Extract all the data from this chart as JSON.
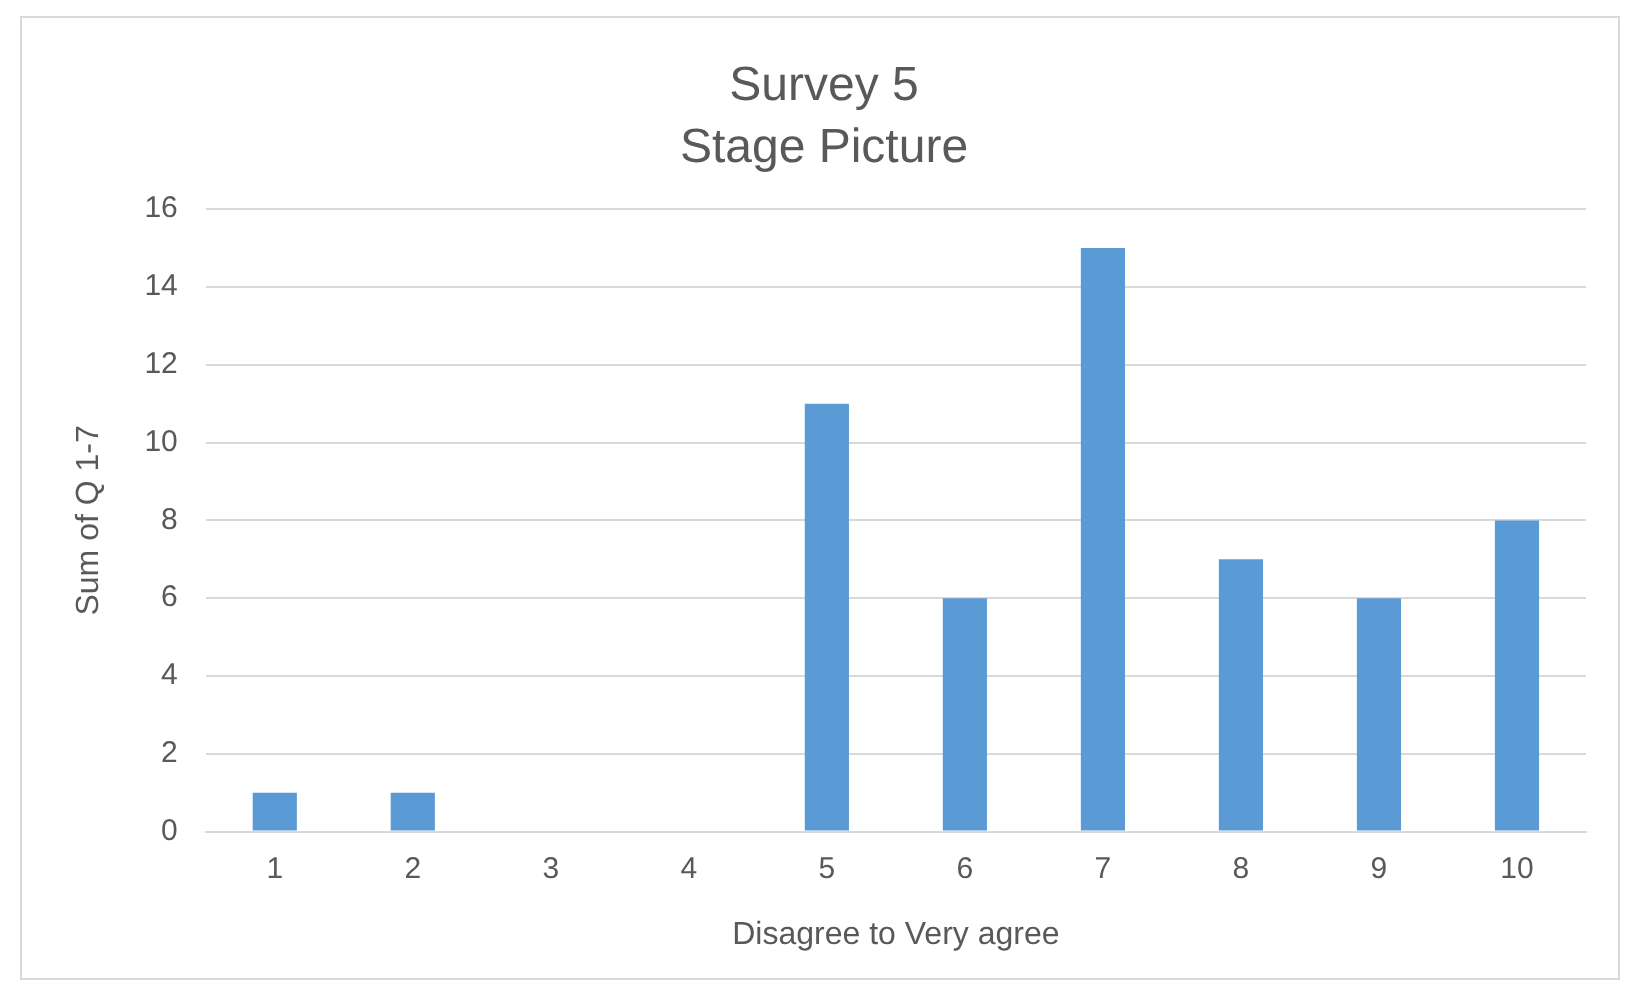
{
  "chart_data": {
    "type": "bar",
    "title": "Survey 5",
    "subtitle": "Stage Picture",
    "xlabel": "Disagree to Very agree",
    "ylabel": "Sum of Q 1-7",
    "categories": [
      "1",
      "2",
      "3",
      "4",
      "5",
      "6",
      "7",
      "8",
      "9",
      "10"
    ],
    "values": [
      1,
      1,
      0,
      0,
      11,
      6,
      15,
      7,
      6,
      8
    ],
    "color": "#5b9bd5",
    "ylim": [
      0,
      16
    ],
    "yticks": [
      0,
      2,
      4,
      6,
      8,
      10,
      12,
      14,
      16
    ],
    "grid": "y",
    "legend": false
  }
}
